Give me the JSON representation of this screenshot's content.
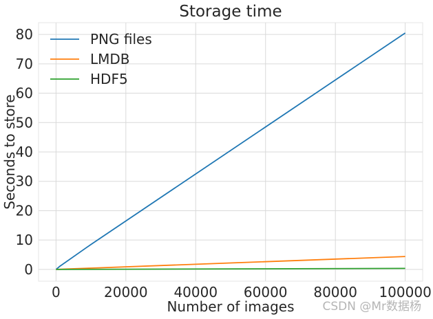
{
  "chart_data": {
    "type": "line",
    "title": "Storage time",
    "xlabel": "Number of images",
    "ylabel": "Seconds to store",
    "xlim": [
      -5000,
      105000
    ],
    "ylim": [
      -4,
      84
    ],
    "xticks": [
      0,
      20000,
      40000,
      60000,
      80000,
      100000
    ],
    "xtick_labels": [
      "0",
      "20000",
      "40000",
      "60000",
      "80000",
      "100000"
    ],
    "yticks": [
      0,
      10,
      20,
      30,
      40,
      50,
      60,
      70,
      80
    ],
    "ytick_labels": [
      "0",
      "10",
      "20",
      "30",
      "40",
      "50",
      "60",
      "70",
      "80"
    ],
    "grid": true,
    "legend_position": "top-left",
    "series": [
      {
        "name": "PNG files",
        "color": "#1f77b4",
        "x": [
          10,
          100,
          1000,
          10000,
          100000
        ],
        "y": [
          0.01,
          0.08,
          1.0,
          8.5,
          80.5
        ]
      },
      {
        "name": "LMDB",
        "color": "#ff7f0e",
        "x": [
          10,
          100,
          1000,
          10000,
          100000
        ],
        "y": [
          0.0,
          0.01,
          0.05,
          0.45,
          4.4
        ]
      },
      {
        "name": "HDF5",
        "color": "#2ca02c",
        "x": [
          10,
          100,
          1000,
          10000,
          100000
        ],
        "y": [
          0.0,
          0.0,
          0.01,
          0.04,
          0.35
        ]
      }
    ]
  },
  "watermark": "CSDN @Mr数据杨"
}
